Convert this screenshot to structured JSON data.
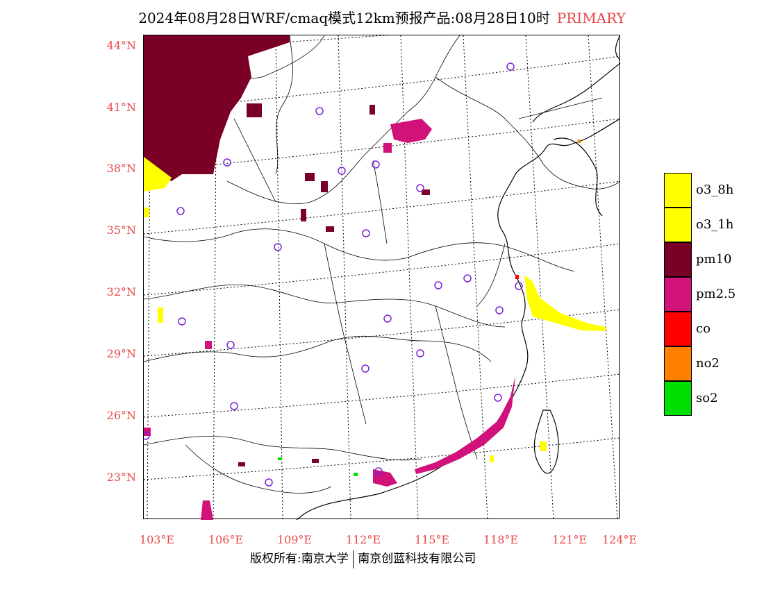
{
  "header": {
    "title": "2024年08月28日WRF/cmaq模式12km预报产品:08月28日10时",
    "tag": "PRIMARY"
  },
  "axes": {
    "lat_labels": [
      "44°N",
      "41°N",
      "38°N",
      "35°N",
      "32°N",
      "29°N",
      "26°N",
      "23°N"
    ],
    "lon_labels": [
      "103°E",
      "106°E",
      "109°E",
      "112°E",
      "115°E",
      "118°E",
      "121°E",
      "124°E"
    ]
  },
  "legend": {
    "items": [
      {
        "label": "o3_8h",
        "color": "#ffff00"
      },
      {
        "label": "o3_1h",
        "color": "#ffff00"
      },
      {
        "label": "pm10",
        "color": "#7a0026"
      },
      {
        "label": "pm2.5",
        "color": "#d0127a"
      },
      {
        "label": "co",
        "color": "#ff0000"
      },
      {
        "label": "no2",
        "color": "#ff8000"
      },
      {
        "label": "so2",
        "color": "#00e000"
      }
    ]
  },
  "footer": {
    "left": "版权所有:南京大学",
    "right": "南京创蓝科技有限公司"
  },
  "colors": {
    "axis_label": "#e84848",
    "station_marker": "#7a22d6"
  }
}
